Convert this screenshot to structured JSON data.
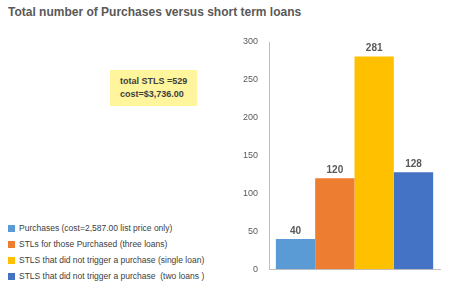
{
  "chart_data": {
    "type": "bar",
    "title": "Total number of Purchases versus short term loans",
    "categories": [
      null
    ],
    "series": [
      {
        "name": "Purchases (cost=2,587.00 list price only)",
        "color": "#5b9bd5",
        "values": [
          40
        ]
      },
      {
        "name": "STLs for those Purchased (three loans)",
        "color": "#ed7d31",
        "values": [
          120
        ]
      },
      {
        "name": "STLS that did not trigger a purchase (single loan)",
        "color": "#ffc000",
        "values": [
          281
        ]
      },
      {
        "name": "STLS that did not trigger a purchase  (two loans )",
        "color": "#4472c4",
        "values": [
          128
        ]
      }
    ],
    "ylim": [
      0,
      300
    ],
    "yticks": [
      0,
      50,
      100,
      150,
      200,
      250,
      300
    ],
    "grid": false,
    "legend": "lower left",
    "data_labels": true,
    "annotation": [
      "total STLS =529",
      "cost=$3,736.00"
    ]
  }
}
